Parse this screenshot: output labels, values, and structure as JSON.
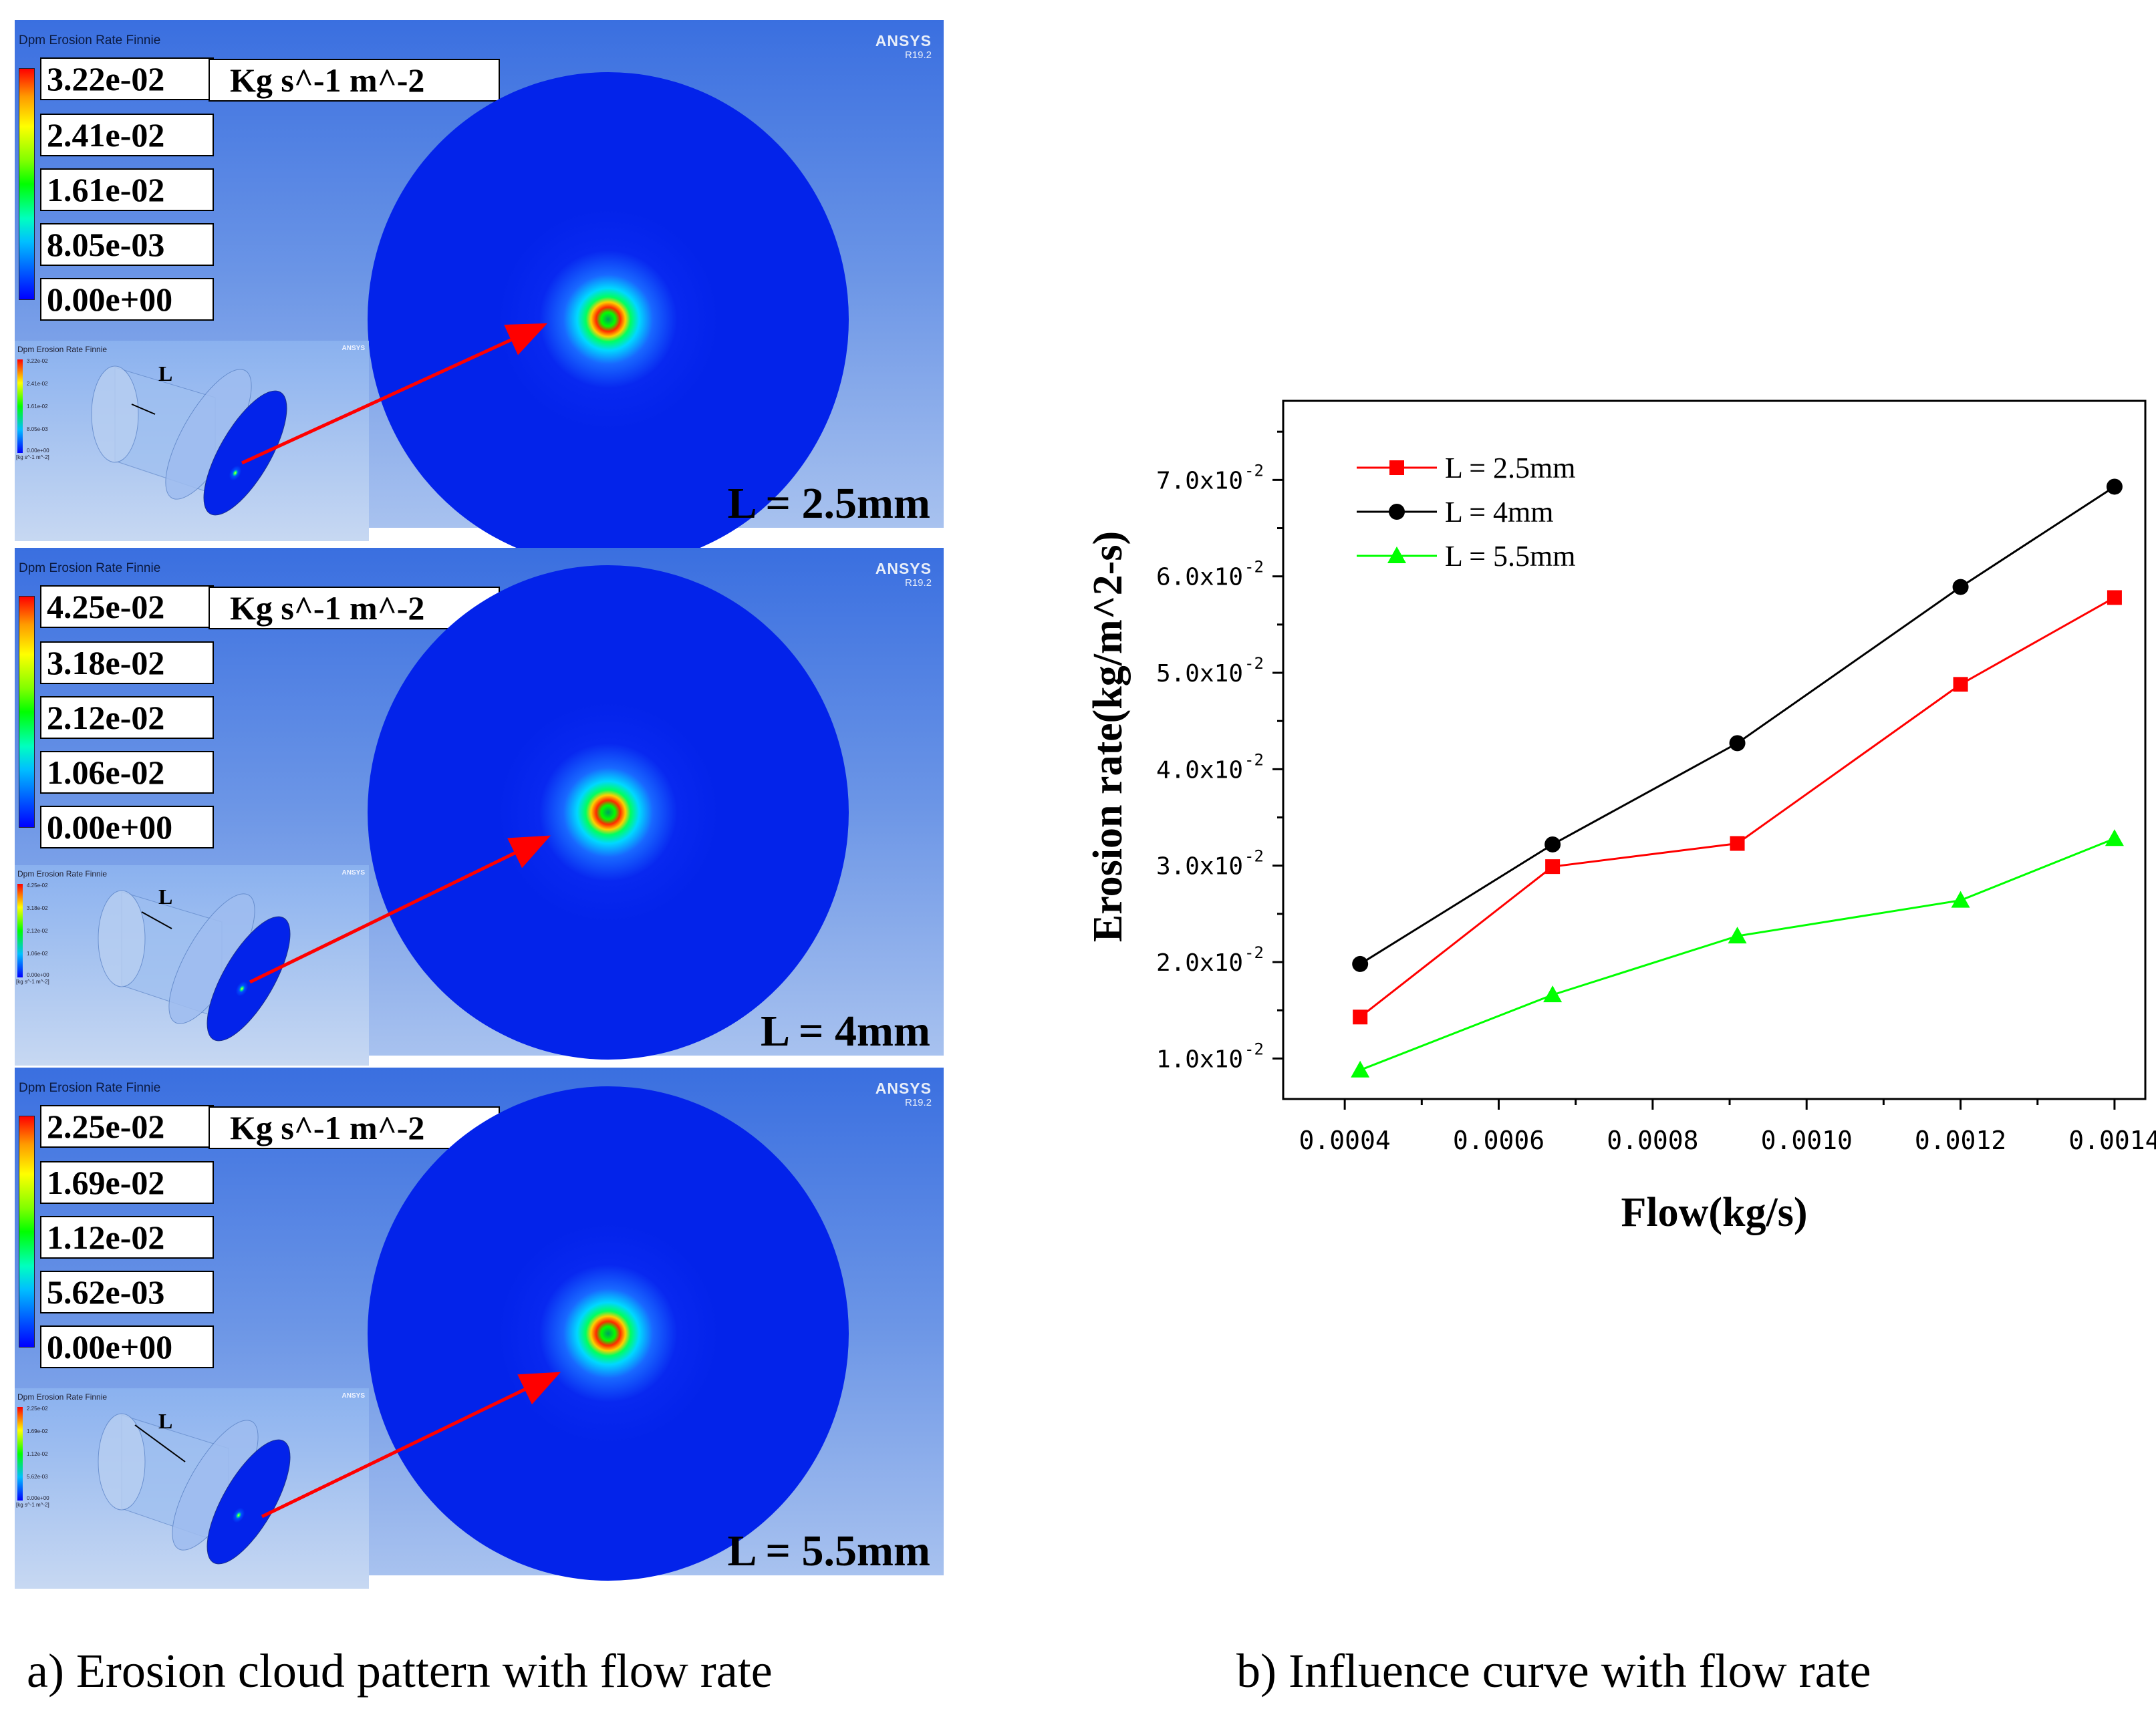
{
  "panels": [
    {
      "title": "Dpm Erosion Rate Finnie",
      "logo": "ANSYS",
      "version": "R19.2",
      "ticks": [
        "3.22e-02",
        "2.41e-02",
        "1.61e-02",
        "8.05e-03",
        "0.00e+00"
      ],
      "unit": "Kg s^-1 m^-2",
      "inset_ticks": [
        "3.22e-02",
        "2.41e-02",
        "1.61e-02",
        "8.05e-03",
        "0.00e+00"
      ],
      "inset_unit": "[kg s^-1 m^-2]",
      "dim_label": "L",
      "case": "L = 2.5mm"
    },
    {
      "title": "Dpm Erosion Rate Finnie",
      "logo": "ANSYS",
      "version": "R19.2",
      "ticks": [
        "4.25e-02",
        "3.18e-02",
        "2.12e-02",
        "1.06e-02",
        "0.00e+00"
      ],
      "unit": "Kg s^-1 m^-2",
      "inset_ticks": [
        "4.25e-02",
        "3.18e-02",
        "2.12e-02",
        "1.06e-02",
        "0.00e+00"
      ],
      "inset_unit": "[kg s^-1 m^-2]",
      "dim_label": "L",
      "case": "L = 4mm"
    },
    {
      "title": "Dpm Erosion Rate Finnie",
      "logo": "ANSYS",
      "version": "R19.2",
      "ticks": [
        "2.25e-02",
        "1.69e-02",
        "1.12e-02",
        "5.62e-03",
        "0.00e+00"
      ],
      "unit": "Kg s^-1 m^-2",
      "inset_ticks": [
        "2.25e-02",
        "1.69e-02",
        "1.12e-02",
        "5.62e-03",
        "0.00e+00"
      ],
      "inset_unit": "[kg s^-1 m^-2]",
      "dim_label": "L",
      "case": "L = 5.5mm"
    }
  ],
  "captions": {
    "a": "a) Erosion cloud pattern with flow rate",
    "b": "b)    Influence curve with flow rate"
  },
  "chart_data": {
    "type": "line",
    "title": "",
    "xlabel": "Flow(kg/s)",
    "ylabel": "Erosion rate(kg/m^2-s)",
    "xlim": [
      0.00032,
      0.00144
    ],
    "ylim": [
      0.0058,
      0.0782
    ],
    "x_ticks": [
      0.0004,
      0.0006,
      0.0008,
      0.001,
      0.0012,
      0.0014
    ],
    "x_tick_labels": [
      "0.0004",
      "0.0006",
      "0.0008",
      "0.0010",
      "0.0012",
      "0.0014"
    ],
    "y_ticks": [
      0.01,
      0.02,
      0.03,
      0.04,
      0.05,
      0.06,
      0.07
    ],
    "y_tick_mantissas": [
      "1.0x10",
      "2.0x10",
      "3.0x10",
      "4.0x10",
      "5.0x10",
      "6.0x10",
      "7.0x10"
    ],
    "y_tick_exponent": "-2",
    "x": [
      0.00042,
      0.00067,
      0.00091,
      0.0012,
      0.0014
    ],
    "series": [
      {
        "name": "L = 2.5mm",
        "color": "#ff0000",
        "marker": "square",
        "values": [
          0.0143,
          0.0299,
          0.0323,
          0.0488,
          0.0578
        ]
      },
      {
        "name": "L = 4mm",
        "color": "#000000",
        "marker": "circle",
        "values": [
          0.0198,
          0.0322,
          0.0427,
          0.0589,
          0.0693
        ]
      },
      {
        "name": "L = 5.5mm",
        "color": "#00ff00",
        "marker": "triangle",
        "values": [
          0.0088,
          0.0166,
          0.0227,
          0.0264,
          0.0328
        ]
      }
    ],
    "legend_position": "top-left",
    "grid": false
  }
}
